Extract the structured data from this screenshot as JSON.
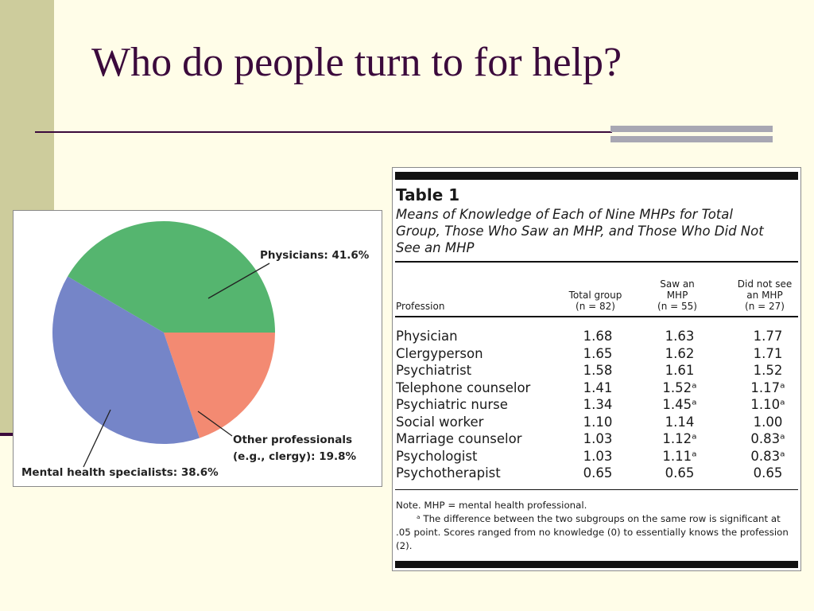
{
  "slide": {
    "title": "Who do people turn to for help?"
  },
  "colors": {
    "title": "#3b0a3c",
    "background": "#fffde8",
    "side_band": "#cdcc9c"
  },
  "chart_data": {
    "type": "pie",
    "title": "",
    "slices": [
      {
        "name": "Physicians",
        "value": 41.6,
        "color": "#55b56f",
        "label": "Physicians: 41.6%"
      },
      {
        "name": "Other professionals (e.g., clergy)",
        "value": 19.8,
        "color": "#f38a72",
        "label": [
          "Other professionals",
          "(e.g., clergy): 19.8%"
        ]
      },
      {
        "name": "Mental health specialists",
        "value": 38.6,
        "color": "#7585c8",
        "label": "Mental health specialists: 38.6%"
      }
    ]
  },
  "table": {
    "label": "Table 1",
    "caption": "Means of Knowledge of Each of Nine MHPs for Total Group, Those Who Saw an MHP, and Those Who Did Not See an MHP",
    "columns": [
      {
        "lines": [
          "Profession"
        ]
      },
      {
        "lines": [
          "Total group",
          "(n = 82)"
        ]
      },
      {
        "lines": [
          "Saw an",
          "MHP",
          "(n = 55)"
        ]
      },
      {
        "lines": [
          "Did not see",
          "an MHP",
          "(n = 27)"
        ]
      }
    ],
    "rows": [
      [
        "Physician",
        "1.68",
        "1.63",
        "1.77"
      ],
      [
        "Clergyperson",
        "1.65",
        "1.62",
        "1.71"
      ],
      [
        "Psychiatrist",
        "1.58",
        "1.61",
        "1.52"
      ],
      [
        "Telephone counselor",
        "1.41",
        "1.52ᵃ",
        "1.17ᵃ"
      ],
      [
        "Psychiatric nurse",
        "1.34",
        "1.45ᵃ",
        "1.10ᵃ"
      ],
      [
        "Social worker",
        "1.10",
        "1.14",
        "1.00"
      ],
      [
        "Marriage counselor",
        "1.03",
        "1.12ᵃ",
        "0.83ᵃ"
      ],
      [
        "Psychologist",
        "1.03",
        "1.11ᵃ",
        "0.83ᵃ"
      ],
      [
        "Psychotherapist",
        "0.65",
        "0.65",
        "0.65"
      ]
    ],
    "note": {
      "line1": "Note. MHP = mental health professional.",
      "line2": "ᵃ The difference between the two subgroups on the same row is significant at .05 point. Scores ranged from no knowledge (0) to essentially knows the profession (2)."
    }
  }
}
